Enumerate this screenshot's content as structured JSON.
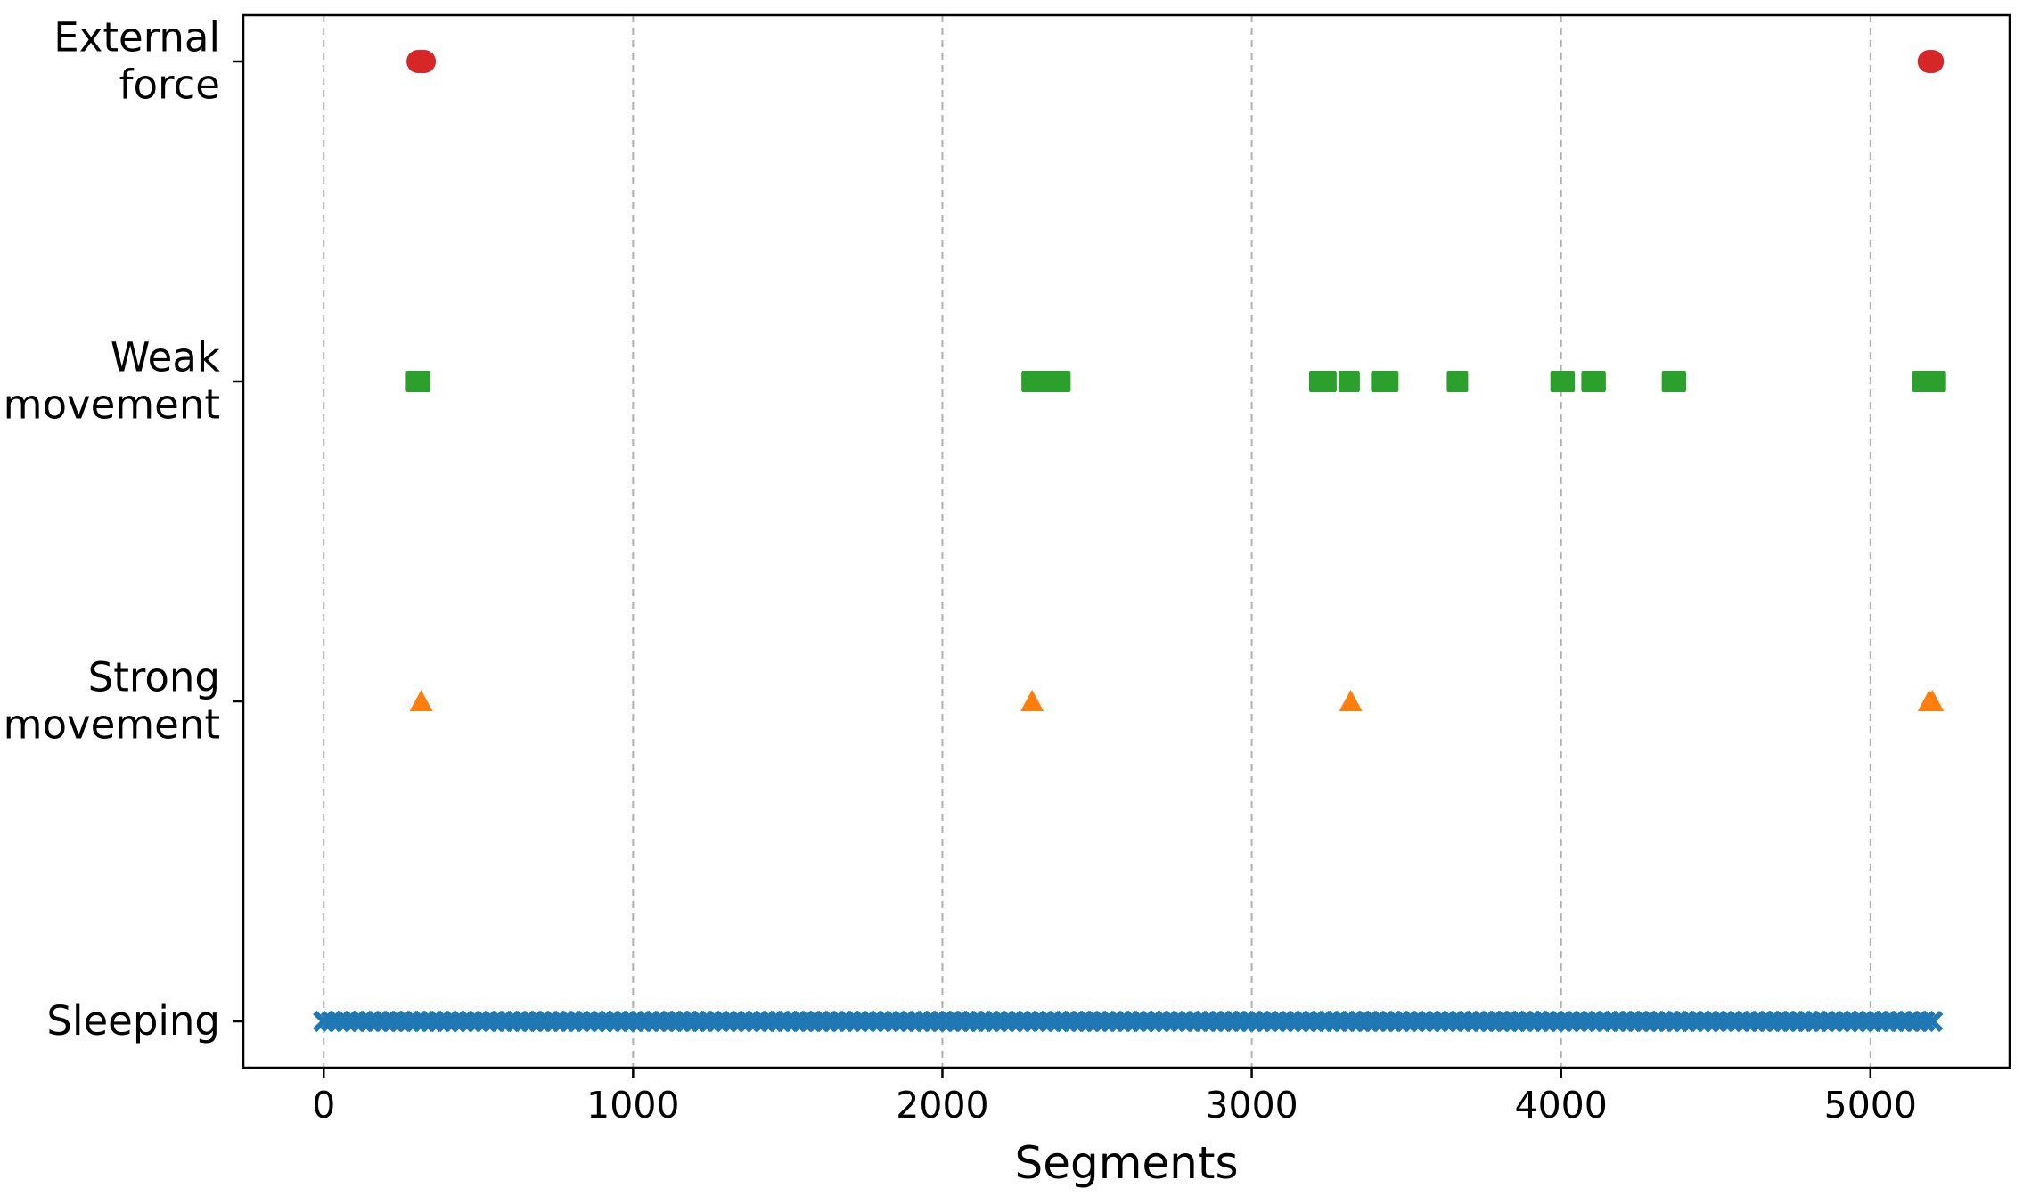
{
  "chart_data": {
    "type": "scatter",
    "title": "",
    "xlabel": "Segments",
    "ylabel": "",
    "xlim": [
      -260,
      5450
    ],
    "x_ticks": [
      0,
      1000,
      2000,
      3000,
      4000,
      5000
    ],
    "grid": "x-dashed",
    "categories": [
      {
        "label_lines": [
          "Sleeping"
        ],
        "level": 0
      },
      {
        "label_lines": [
          "Strong",
          "movement"
        ],
        "level": 1
      },
      {
        "label_lines": [
          "Weak",
          "movement"
        ],
        "level": 2
      },
      {
        "label_lines": [
          "External",
          "force"
        ],
        "level": 3
      }
    ],
    "series": [
      {
        "category": "Sleeping",
        "marker": "x",
        "color": "#1f77b4",
        "range": [
          0,
          5200
        ],
        "step": 25
      },
      {
        "category": "Strong movement",
        "marker": "triangle",
        "color": "#ff7f0e",
        "x": [
          315,
          2290,
          3320,
          5190,
          5200
        ]
      },
      {
        "category": "Weak movement",
        "marker": "square",
        "color": "#2ca02c",
        "x": [
          300,
          310,
          2290,
          2310,
          2360,
          2380,
          3220,
          3240,
          3315,
          3420,
          3440,
          3665,
          4000,
          4010,
          4100,
          4110,
          4360,
          4370,
          5170,
          5180,
          5190,
          5200,
          5210
        ]
      },
      {
        "category": "External force",
        "marker": "circle",
        "color": "#d62728",
        "x": [
          305,
          315,
          325,
          5190,
          5200
        ]
      }
    ]
  }
}
